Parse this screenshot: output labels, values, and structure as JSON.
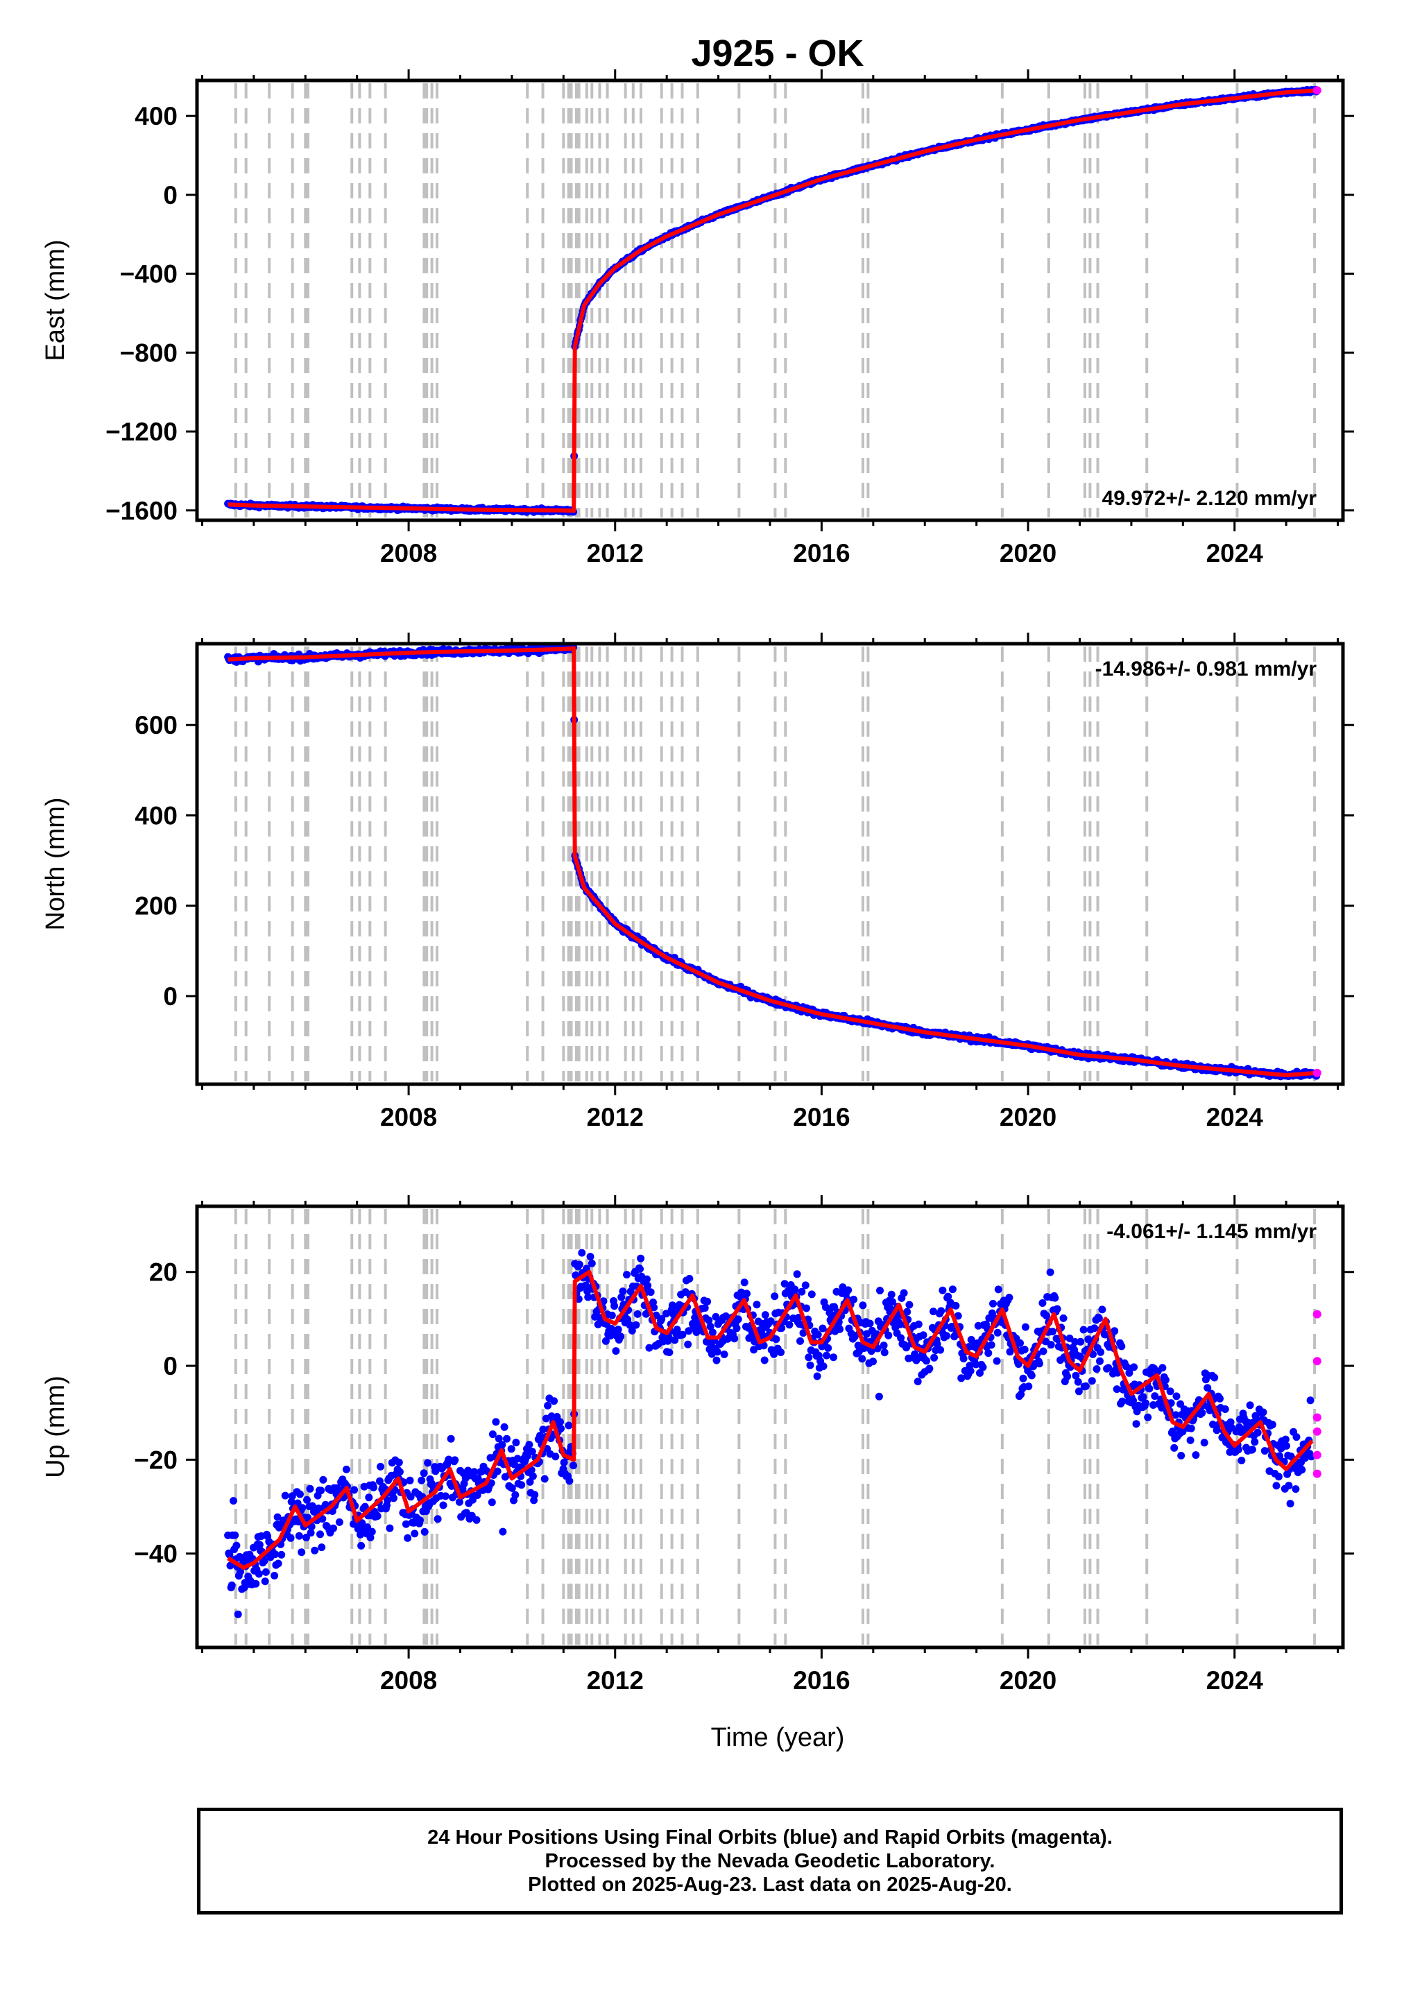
{
  "title": "J925 - OK",
  "xlabel": "Time (year)",
  "footer": {
    "line1": "24 Hour Positions Using Final Orbits (blue) and Rapid Orbits (magenta).",
    "line2": "Processed by the Nevada Geodetic Laboratory.",
    "line3": "Plotted on 2025-Aug-23. Last data on 2025-Aug-20."
  },
  "colors": {
    "final": "#0000ff",
    "rapid": "#ff00ff",
    "model": "#ff0000",
    "events": "#c0c0c0"
  },
  "chart_data": [
    {
      "type": "scatter",
      "ylabel": "East (mm)",
      "rate": "49.972+/- 2.120 mm/yr",
      "xlim": [
        2003.9,
        2026.1
      ],
      "ylim": [
        -1650,
        580
      ],
      "xticks": [
        2008,
        2012,
        2016,
        2020,
        2024
      ],
      "yticks": [
        400,
        0,
        -400,
        -800,
        -1200,
        -1600
      ],
      "series": [
        {
          "x": [
            2004.5,
            2005.0,
            2006.0,
            2007.0,
            2008.0,
            2009.0,
            2010.0,
            2011.0,
            2011.2,
            2011.22,
            2011.4,
            2011.7,
            2012.0,
            2012.5,
            2013.0,
            2014.0,
            2015.0,
            2016.0,
            2017.0,
            2018.0,
            2019.0,
            2020.0,
            2021.0,
            2022.0,
            2023.0,
            2024.0,
            2025.0,
            2025.6
          ],
          "values": [
            -1570,
            -1575,
            -1580,
            -1585,
            -1590,
            -1595,
            -1598,
            -1600,
            -1602,
            -770,
            -560,
            -450,
            -370,
            -280,
            -210,
            -100,
            -10,
            80,
            150,
            220,
            280,
            330,
            380,
            420,
            460,
            490,
            520,
            530
          ]
        }
      ],
      "rapid_points": [
        [
          2025.6,
          530
        ]
      ]
    },
    {
      "type": "scatter",
      "ylabel": "North (mm)",
      "rate": "-14.986+/- 0.981 mm/yr",
      "xlim": [
        2003.9,
        2026.1
      ],
      "ylim": [
        -195,
        780
      ],
      "xticks": [
        2008,
        2012,
        2016,
        2020,
        2024
      ],
      "yticks": [
        600,
        400,
        200,
        0
      ],
      "series": [
        {
          "x": [
            2004.5,
            2005.0,
            2006.0,
            2007.0,
            2008.0,
            2009.0,
            2010.0,
            2011.0,
            2011.2,
            2011.22,
            2011.4,
            2011.7,
            2012.0,
            2012.5,
            2013.0,
            2014.0,
            2015.0,
            2016.0,
            2017.0,
            2018.0,
            2019.0,
            2020.0,
            2021.0,
            2022.0,
            2023.0,
            2024.0,
            2025.0,
            2025.6
          ],
          "values": [
            745,
            748,
            750,
            755,
            760,
            763,
            765,
            768,
            770,
            310,
            240,
            200,
            160,
            120,
            85,
            30,
            -10,
            -40,
            -60,
            -80,
            -95,
            -110,
            -130,
            -140,
            -155,
            -165,
            -175,
            -170
          ]
        }
      ],
      "rapid_points": [
        [
          2025.6,
          -170
        ]
      ]
    },
    {
      "type": "scatter",
      "ylabel": "Up (mm)",
      "rate": "-4.061+/- 1.145 mm/yr",
      "xlim": [
        2003.9,
        2026.1
      ],
      "ylim": [
        -60,
        34
      ],
      "xticks": [
        2008,
        2012,
        2016,
        2020,
        2024
      ],
      "yticks": [
        20,
        0,
        -20,
        -40
      ],
      "series": [
        {
          "x": [
            2004.5,
            2004.8,
            2005.0,
            2005.5,
            2005.8,
            2006.0,
            2006.5,
            2006.8,
            2007.0,
            2007.5,
            2007.8,
            2008.0,
            2008.5,
            2008.8,
            2009.0,
            2009.5,
            2009.8,
            2010.0,
            2010.5,
            2010.8,
            2011.0,
            2011.2,
            2011.22,
            2011.5,
            2011.8,
            2012.0,
            2012.5,
            2012.8,
            2013.0,
            2013.5,
            2013.8,
            2014.0,
            2014.5,
            2014.8,
            2015.0,
            2015.5,
            2015.8,
            2016.0,
            2016.5,
            2016.8,
            2017.0,
            2017.5,
            2017.8,
            2018.0,
            2018.5,
            2018.8,
            2019.0,
            2019.5,
            2019.8,
            2020.0,
            2020.5,
            2020.8,
            2021.0,
            2021.5,
            2021.8,
            2022.0,
            2022.5,
            2022.8,
            2023.0,
            2023.5,
            2023.8,
            2024.0,
            2024.5,
            2024.8,
            2025.0,
            2025.5
          ],
          "values": [
            -41,
            -43,
            -42,
            -37,
            -30,
            -34,
            -30,
            -26,
            -33,
            -28,
            -24,
            -31,
            -27,
            -22,
            -28,
            -25,
            -18,
            -24,
            -20,
            -12,
            -19,
            -20,
            18,
            20,
            10,
            9,
            17,
            8,
            7,
            15,
            6,
            6,
            14,
            5,
            6,
            15,
            5,
            5,
            14,
            5,
            4,
            13,
            4,
            3,
            12,
            3,
            2,
            12,
            2,
            0,
            11,
            1,
            -1,
            10,
            -1,
            -6,
            -2,
            -12,
            -13,
            -6,
            -14,
            -17,
            -12,
            -20,
            -22,
            -16
          ]
        }
      ],
      "rapid_points": [
        [
          2025.6,
          11
        ],
        [
          2025.6,
          1
        ],
        [
          2025.6,
          -11
        ],
        [
          2025.6,
          -14
        ],
        [
          2025.6,
          -19
        ],
        [
          2025.6,
          -23
        ]
      ]
    }
  ],
  "event_lines": [
    2004.65,
    2004.85,
    2005.3,
    2005.75,
    2006.0,
    2006.05,
    2006.9,
    2007.05,
    2007.25,
    2007.55,
    2008.3,
    2008.35,
    2008.45,
    2008.55,
    2010.3,
    2010.6,
    2011.0,
    2011.1,
    2011.15,
    2011.25,
    2011.3,
    2011.45,
    2011.55,
    2011.7,
    2011.85,
    2012.2,
    2012.35,
    2012.5,
    2012.9,
    2013.1,
    2013.3,
    2013.6,
    2014.4,
    2015.1,
    2015.3,
    2016.8,
    2016.9,
    2019.5,
    2020.4,
    2021.1,
    2021.2,
    2021.35,
    2022.3,
    2024.05,
    2025.55
  ]
}
